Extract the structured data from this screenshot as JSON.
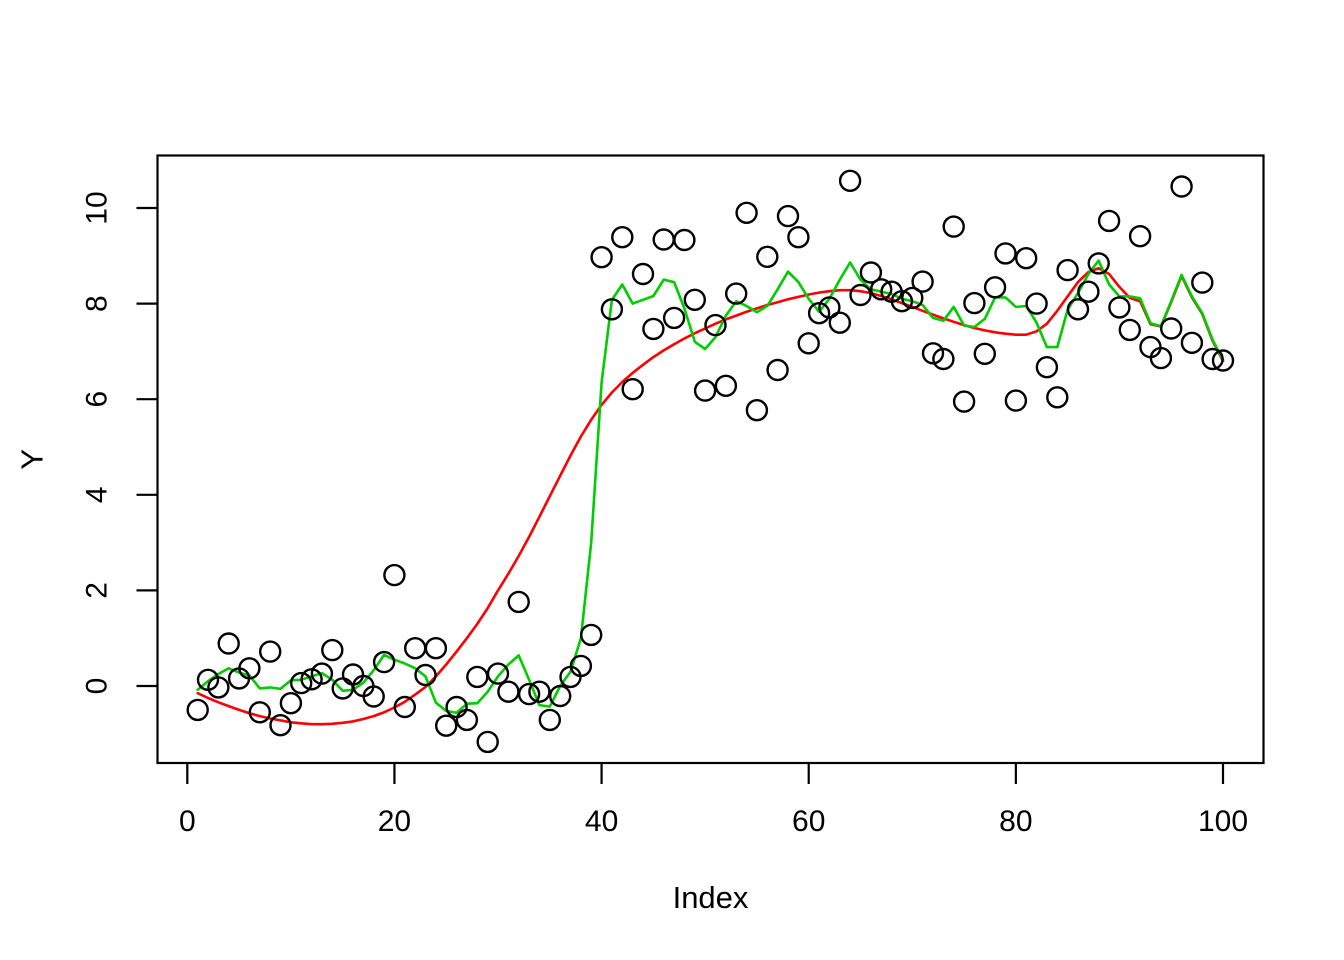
{
  "chart_data": {
    "type": "scatter",
    "title": "",
    "xlabel": "Index",
    "ylabel": "Y",
    "x_start": 1,
    "x_ticks": [
      0,
      20,
      40,
      60,
      80,
      100
    ],
    "y_ticks": [
      0,
      2,
      4,
      6,
      8,
      10
    ],
    "xlim": [
      -3,
      104
    ],
    "ylim": [
      -1.6,
      11.1
    ],
    "grid": false,
    "legend": "none",
    "point_style": "open-circle",
    "point_color": "#000000",
    "smooth_line_color": "#ff0000",
    "running_mean_color": "#00cd00",
    "scatter_y": [
      -0.5,
      0.13,
      -0.03,
      0.89,
      0.16,
      0.37,
      -0.55,
      0.72,
      -0.82,
      -0.36,
      0.06,
      0.14,
      0.26,
      0.75,
      -0.05,
      0.24,
      0.0,
      -0.22,
      0.5,
      2.32,
      -0.44,
      0.79,
      0.23,
      0.79,
      -0.83,
      -0.44,
      -0.71,
      0.19,
      -1.17,
      0.26,
      -0.12,
      1.76,
      -0.17,
      -0.12,
      -0.71,
      -0.21,
      0.19,
      0.42,
      1.07,
      8.97,
      7.88,
      9.39,
      6.21,
      8.62,
      7.47,
      9.34,
      7.7,
      9.33,
      8.08,
      6.18,
      7.55,
      6.28,
      8.21,
      9.9,
      5.77,
      8.98,
      6.61,
      9.83,
      9.39,
      7.17,
      7.8,
      7.92,
      7.6,
      10.57,
      8.18,
      8.65,
      8.3,
      8.25,
      8.05,
      8.12,
      8.46,
      6.96,
      6.84,
      9.61,
      5.95,
      8.01,
      6.95,
      8.34,
      9.05,
      5.97,
      8.95,
      8.0,
      6.67,
      6.04,
      8.7,
      7.88,
      8.25,
      8.84,
      9.73,
      7.92,
      7.45,
      9.41,
      7.09,
      6.86,
      7.48,
      10.45,
      7.18,
      8.44,
      6.84,
      6.81
    ],
    "green_line_y": [
      -0.08,
      0.1,
      0.25,
      0.37,
      0.28,
      0.22,
      -0.05,
      -0.03,
      -0.06,
      0.12,
      0.13,
      0.2,
      0.27,
      0.13,
      -0.1,
      -0.08,
      0.07,
      0.33,
      0.65,
      0.55,
      0.47,
      0.37,
      0.2,
      -0.35,
      -0.52,
      -0.56,
      -0.37,
      -0.36,
      -0.12,
      0.2,
      0.45,
      0.64,
      0.13,
      -0.4,
      -0.43,
      0.0,
      0.3,
      1.0,
      3.0,
      6.35,
      8.08,
      8.4,
      8.0,
      8.08,
      8.16,
      8.5,
      8.45,
      7.9,
      7.2,
      7.05,
      7.3,
      7.75,
      8.05,
      7.95,
      7.82,
      7.95,
      8.3,
      8.67,
      8.45,
      8.1,
      7.83,
      8.1,
      8.5,
      8.86,
      8.5,
      8.3,
      8.25,
      8.2,
      8.1,
      8.05,
      7.97,
      7.7,
      7.64,
      7.93,
      7.54,
      7.51,
      7.68,
      8.13,
      8.13,
      7.93,
      7.95,
      7.6,
      7.09,
      7.09,
      7.87,
      8.22,
      8.62,
      8.9,
      8.4,
      8.15,
      8.15,
      8.11,
      7.59,
      7.53,
      8.05,
      8.6,
      8.15,
      7.8,
      7.24,
      6.82
    ],
    "red_line_y": [
      -0.15,
      -0.25,
      -0.34,
      -0.42,
      -0.5,
      -0.57,
      -0.63,
      -0.68,
      -0.72,
      -0.76,
      -0.78,
      -0.8,
      -0.8,
      -0.79,
      -0.77,
      -0.74,
      -0.69,
      -0.63,
      -0.55,
      -0.45,
      -0.33,
      -0.18,
      -0.02,
      0.2,
      0.45,
      0.72,
      1.0,
      1.3,
      1.63,
      2.0,
      2.35,
      2.72,
      3.12,
      3.54,
      3.97,
      4.4,
      4.82,
      5.22,
      5.57,
      5.88,
      6.14,
      6.36,
      6.55,
      6.72,
      6.88,
      7.02,
      7.15,
      7.27,
      7.38,
      7.48,
      7.58,
      7.67,
      7.75,
      7.83,
      7.9,
      7.97,
      8.03,
      8.09,
      8.14,
      8.19,
      8.23,
      8.26,
      8.28,
      8.28,
      8.26,
      8.22,
      8.16,
      8.09,
      8.01,
      7.93,
      7.85,
      7.77,
      7.69,
      7.62,
      7.55,
      7.49,
      7.44,
      7.4,
      7.37,
      7.35,
      7.35,
      7.42,
      7.58,
      7.85,
      8.15,
      8.45,
      8.66,
      8.74,
      8.62,
      8.35,
      8.12,
      8.05,
      7.57,
      7.52,
      8.03,
      8.58,
      8.13,
      7.78,
      7.22,
      6.8
    ]
  }
}
